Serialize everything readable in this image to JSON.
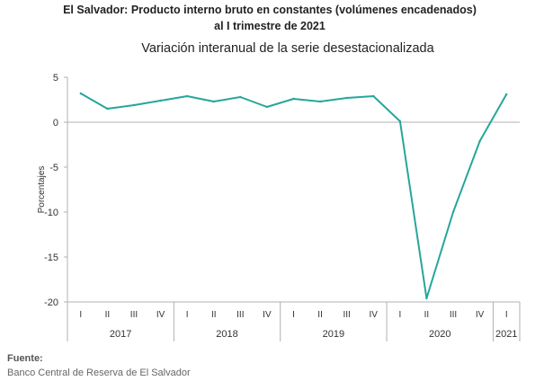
{
  "header": {
    "title_line1": "El Salvador: Producto interno bruto en constantes (volúmenes encadenados)",
    "title_line2": "al I trimestre de 2021",
    "subtitle": "Variación interanual de la serie desestacionalizada"
  },
  "chart_data": {
    "type": "line",
    "ylabel": "Porcentajes",
    "ylim": [
      -20,
      5
    ],
    "yticks": [
      5,
      0,
      -5,
      -10,
      -15,
      -20
    ],
    "grid": false,
    "categories": [
      "I",
      "II",
      "III",
      "IV",
      "I",
      "II",
      "III",
      "IV",
      "I",
      "II",
      "III",
      "IV",
      "I",
      "II",
      "III",
      "IV",
      "I"
    ],
    "years": [
      {
        "label": "2017",
        "quarters": 4
      },
      {
        "label": "2018",
        "quarters": 4
      },
      {
        "label": "2019",
        "quarters": 4
      },
      {
        "label": "2020",
        "quarters": 4
      },
      {
        "label": "2021",
        "quarters": 1
      }
    ],
    "series": [
      {
        "color": "#26a69a",
        "values": [
          3.2,
          1.5,
          1.9,
          2.4,
          2.9,
          2.3,
          2.8,
          1.7,
          2.6,
          2.3,
          2.7,
          2.9,
          0.1,
          -19.6,
          -10.0,
          -2.1,
          3.1
        ]
      }
    ]
  },
  "source": {
    "label": "Fuente:",
    "text": "Banco Central de Reserva de El Salvador"
  }
}
